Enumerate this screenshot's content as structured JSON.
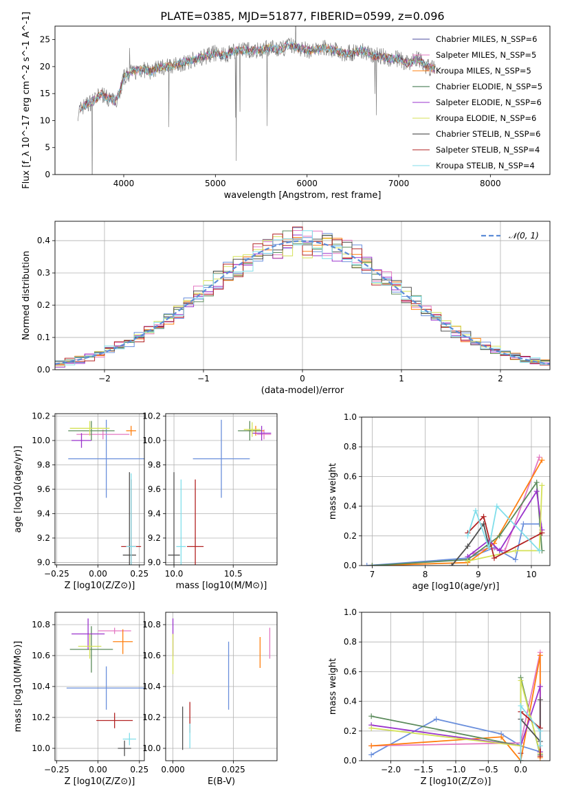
{
  "figure": {
    "title": "PLATE=0385, MJD=51877, FIBERID=0599, z=0.096"
  },
  "chart_data": [
    {
      "id": "spectrum",
      "type": "line",
      "xlabel": "wavelength [Angstrom, rest frame]",
      "ylabel": "Flux [f_λ 10^-17 erg cm^-2 s^-1 A^-1]",
      "xlim": [
        3250,
        8650
      ],
      "ylim": [
        0,
        27.5
      ],
      "xticks": [
        4000,
        5000,
        6000,
        7000,
        8000
      ],
      "yticks": [
        0,
        5,
        10,
        15,
        20,
        25
      ],
      "grid": false,
      "legend_position": "top-right",
      "data_color": "#808080",
      "data_curve": {
        "x": [
          3500,
          3550,
          3600,
          3650,
          3700,
          3750,
          3800,
          3850,
          3900,
          3950,
          4000,
          4100,
          4200,
          4300,
          4400,
          4500,
          4600,
          4700,
          4800,
          4900,
          5000,
          5100,
          5200,
          5300,
          5400,
          5500,
          5600,
          5700,
          5800,
          5900,
          6000,
          6100,
          6200,
          6300,
          6400,
          6500,
          6600,
          6700,
          6800,
          6900,
          7000,
          7100,
          7200,
          7300,
          7400
        ],
        "y": [
          11.5,
          12.5,
          13,
          13.5,
          14,
          15,
          14.5,
          14,
          13.5,
          15,
          18,
          19,
          19.5,
          19,
          20,
          20,
          20.5,
          21,
          21.5,
          22,
          22.5,
          22,
          23,
          23,
          23,
          23,
          23.5,
          23,
          24,
          23.5,
          23,
          23,
          23.5,
          23,
          22.5,
          22.5,
          23,
          22,
          22,
          21.5,
          21.5,
          20.5,
          21.5,
          20,
          19.5
        ]
      },
      "series": [
        {
          "name": "Chabrier MILES, N_SSP=6",
          "color": "#4a4a9c"
        },
        {
          "name": "Salpeter MILES, N_SSP=5",
          "color": "#e377c2"
        },
        {
          "name": "Kroupa MILES, N_SSP=5",
          "color": "#ff7f0e"
        },
        {
          "name": "Chabrier ELODIE, N_SSP=5",
          "color": "#2e6b3c"
        },
        {
          "name": "Salpeter ELODIE, N_SSP=6",
          "color": "#9932cc"
        },
        {
          "name": "Kroupa ELODIE, N_SSP=6",
          "color": "#d4e157"
        },
        {
          "name": "Chabrier STELIB, N_SSP=6",
          "color": "#303030"
        },
        {
          "name": "Salpeter STELIB, N_SSP=4",
          "color": "#b22222"
        },
        {
          "name": "Kroupa STELIB, N_SSP=4",
          "color": "#80deea"
        }
      ]
    },
    {
      "id": "residuals",
      "type": "histogram",
      "xlabel": "(data-model)/error",
      "ylabel": "Normed distribution",
      "xlim": [
        -2.5,
        2.5
      ],
      "ylim": [
        0,
        0.46
      ],
      "xticks": [
        -2,
        -1,
        0,
        1,
        2
      ],
      "yticks": [
        0.0,
        0.1,
        0.2,
        0.3,
        0.4
      ],
      "grid": true,
      "legend": "𝒩(0, 1)",
      "legend_position": "top-right",
      "gaussian_mu": 0,
      "gaussian_sigma": 1,
      "bin_width": 0.1,
      "colors": [
        "#6a8fdc",
        "#e377c2",
        "#ff7f0e",
        "#5a8a5a",
        "#9932cc",
        "#d4e157",
        "#505050",
        "#b22222",
        "#80deea"
      ]
    },
    {
      "id": "age_vs_Z",
      "type": "errorbar",
      "xlabel": "Z [log10(Z/Z⊙)]",
      "ylabel": "age [log10(age/yr)]",
      "xlim": [
        -0.26,
        0.28
      ],
      "ylim": [
        8.98,
        10.22
      ],
      "xticks": [
        -0.25,
        0.0,
        0.25
      ],
      "xtick_labels": [
        "−0.25",
        "0.00",
        "0.25"
      ],
      "yticks": [
        9.0,
        9.2,
        9.4,
        9.6,
        9.8,
        10.0,
        10.2
      ],
      "grid": true,
      "points": [
        {
          "x": 0.05,
          "y": 9.85,
          "xerr": 0.23,
          "yerr": 0.32,
          "color": "#6a8fdc"
        },
        {
          "x": 0.03,
          "y": 10.05,
          "xerr": 0.16,
          "yerr": 0.04,
          "color": "#e377c2"
        },
        {
          "x": 0.2,
          "y": 10.08,
          "xerr": 0.03,
          "yerr": 0.04,
          "color": "#ff7f0e"
        },
        {
          "x": -0.04,
          "y": 10.08,
          "xerr": 0.14,
          "yerr": 0.08,
          "color": "#5a8a5a"
        },
        {
          "x": -0.1,
          "y": 10.0,
          "xerr": 0.06,
          "yerr": 0.06,
          "color": "#9932cc"
        },
        {
          "x": -0.05,
          "y": 10.1,
          "xerr": 0.12,
          "yerr": 0.06,
          "color": "#d4e157"
        },
        {
          "x": 0.19,
          "y": 9.06,
          "xerr": 0.04,
          "yerr": 0.68,
          "color": "#505050"
        },
        {
          "x": 0.2,
          "y": 9.13,
          "xerr": 0.06,
          "yerr": 0.55,
          "color": "#b22222"
        },
        {
          "x": 0.2,
          "y": 9.13,
          "xerr": 0.03,
          "yerr": 0.6,
          "color": "#80deea"
        }
      ]
    },
    {
      "id": "age_vs_mass",
      "type": "errorbar",
      "xlabel": "mass [log10(M/M⊙)]",
      "xlim": [
        9.93,
        10.87
      ],
      "ylim": [
        8.98,
        10.22
      ],
      "xticks": [
        10.0,
        10.5
      ],
      "yticks": [
        9.0,
        9.2,
        9.4,
        9.6,
        9.8,
        10.0,
        10.2
      ],
      "grid": true,
      "points": [
        {
          "x": 10.4,
          "y": 9.85,
          "xerr": 0.24,
          "yerr": 0.32,
          "color": "#6a8fdc"
        },
        {
          "x": 10.76,
          "y": 10.05,
          "xerr": 0.06,
          "yerr": 0.04,
          "color": "#e377c2"
        },
        {
          "x": 10.69,
          "y": 10.08,
          "xerr": 0.07,
          "yerr": 0.04,
          "color": "#ff7f0e"
        },
        {
          "x": 10.64,
          "y": 10.08,
          "xerr": 0.1,
          "yerr": 0.08,
          "color": "#5a8a5a"
        },
        {
          "x": 10.74,
          "y": 10.06,
          "xerr": 0.08,
          "yerr": 0.06,
          "color": "#9932cc"
        },
        {
          "x": 10.66,
          "y": 10.09,
          "xerr": 0.07,
          "yerr": 0.06,
          "color": "#d4e157"
        },
        {
          "x": 10.0,
          "y": 9.06,
          "xerr": 0.05,
          "yerr": 0.68,
          "color": "#505050"
        },
        {
          "x": 10.18,
          "y": 9.13,
          "xerr": 0.07,
          "yerr": 0.55,
          "color": "#b22222"
        },
        {
          "x": 10.06,
          "y": 9.13,
          "xerr": 0.04,
          "yerr": 0.55,
          "color": "#80deea"
        }
      ]
    },
    {
      "id": "weight_vs_age",
      "type": "line",
      "xlabel": "age [log10(age/yr)]",
      "ylabel": "mass weight",
      "xlim": [
        6.8,
        10.35
      ],
      "ylim": [
        0,
        1.0
      ],
      "xticks": [
        7,
        8,
        9,
        10
      ],
      "yticks": [
        0.0,
        0.2,
        0.4,
        0.6,
        0.8,
        1.0
      ],
      "grid": true,
      "series": [
        {
          "color": "#6a8fdc",
          "x": [
            6.9,
            8.8,
            9.3,
            9.7,
            9.85,
            10.15
          ],
          "y": [
            0.0,
            0.05,
            0.12,
            0.04,
            0.28,
            0.28
          ]
        },
        {
          "color": "#e377c2",
          "x": [
            8.9,
            9.2,
            9.5,
            10.15
          ],
          "y": [
            0.08,
            0.12,
            0.1,
            0.73
          ]
        },
        {
          "color": "#ff7f0e",
          "x": [
            7.0,
            8.8,
            9.3,
            10.2
          ],
          "y": [
            0.0,
            0.02,
            0.15,
            0.71
          ]
        },
        {
          "color": "#5a8a5a",
          "x": [
            7.0,
            8.8,
            9.4,
            10.1,
            10.2
          ],
          "y": [
            0.0,
            0.04,
            0.2,
            0.56,
            0.1
          ]
        },
        {
          "color": "#9932cc",
          "x": [
            8.8,
            9.2,
            9.4,
            10.1,
            10.2
          ],
          "y": [
            0.06,
            0.17,
            0.1,
            0.5,
            0.24
          ]
        },
        {
          "color": "#d4e157",
          "x": [
            8.8,
            9.7,
            10.15,
            10.2
          ],
          "y": [
            0.03,
            0.1,
            0.1,
            0.54
          ]
        },
        {
          "color": "#505050",
          "x": [
            8.5,
            8.8,
            9.1,
            9.2
          ],
          "y": [
            0.0,
            0.13,
            0.28,
            0.13
          ]
        },
        {
          "color": "#b22222",
          "x": [
            8.8,
            9.1,
            9.3,
            10.2
          ],
          "y": [
            0.22,
            0.33,
            0.05,
            0.22
          ]
        },
        {
          "color": "#80deea",
          "x": [
            8.8,
            8.95,
            9.2,
            9.35,
            10.15
          ],
          "y": [
            0.2,
            0.37,
            0.12,
            0.4,
            0.1
          ]
        }
      ]
    },
    {
      "id": "mass_vs_Z",
      "type": "errorbar",
      "xlabel": "Z [log10(Z/Z⊙)]",
      "ylabel": "mass [log10(M/M⊙)]",
      "xlim": [
        -0.26,
        0.28
      ],
      "ylim": [
        9.92,
        10.88
      ],
      "xticks": [
        -0.25,
        0.0,
        0.25
      ],
      "xtick_labels": [
        "−0.25",
        "0.00",
        "0.25"
      ],
      "yticks": [
        10.0,
        10.2,
        10.4,
        10.6,
        10.8
      ],
      "grid": true,
      "points": [
        {
          "x": 0.05,
          "y": 10.39,
          "xerr": 0.24,
          "yerr": 0.14,
          "color": "#6a8fdc"
        },
        {
          "x": 0.1,
          "y": 10.76,
          "xerr": 0.1,
          "yerr": 0.02,
          "color": "#e377c2"
        },
        {
          "x": 0.15,
          "y": 10.69,
          "xerr": 0.06,
          "yerr": 0.08,
          "color": "#ff7f0e"
        },
        {
          "x": -0.04,
          "y": 10.64,
          "xerr": 0.13,
          "yerr": 0.15,
          "color": "#5a8a5a"
        },
        {
          "x": -0.06,
          "y": 10.74,
          "xerr": 0.1,
          "yerr": 0.1,
          "color": "#9932cc"
        },
        {
          "x": -0.05,
          "y": 10.66,
          "xerr": 0.07,
          "yerr": 0.08,
          "color": "#d4e157"
        },
        {
          "x": 0.16,
          "y": 10.0,
          "xerr": 0.04,
          "yerr": 0.05,
          "color": "#505050"
        },
        {
          "x": 0.1,
          "y": 10.18,
          "xerr": 0.11,
          "yerr": 0.05,
          "color": "#b22222"
        },
        {
          "x": 0.19,
          "y": 10.06,
          "xerr": 0.04,
          "yerr": 0.04,
          "color": "#80deea"
        }
      ]
    },
    {
      "id": "mass_vs_ebv",
      "type": "errorbar",
      "xlabel": "E(B-V)",
      "xlim": [
        -0.003,
        0.043
      ],
      "ylim": [
        9.92,
        10.88
      ],
      "xticks": [
        0.0,
        0.025
      ],
      "xtick_labels": [
        "0.000",
        "0.025"
      ],
      "yticks": [
        10.0,
        10.2,
        10.4,
        10.6,
        10.8
      ],
      "grid": true,
      "points": [
        {
          "x": 0.023,
          "y": 10.47,
          "yerr": 0.22,
          "color": "#6a8fdc"
        },
        {
          "x": 0.04,
          "y": 10.68,
          "yerr": 0.1,
          "color": "#e377c2"
        },
        {
          "x": 0.036,
          "y": 10.62,
          "yerr": 0.1,
          "color": "#ff7f0e"
        },
        {
          "x": 0.0,
          "y": 10.72,
          "yerr": 0.12,
          "color": "#9932cc"
        },
        {
          "x": 0.0,
          "y": 10.61,
          "yerr": 0.13,
          "color": "#d4e157"
        },
        {
          "x": 0.004,
          "y": 10.13,
          "yerr": 0.14,
          "color": "#505050"
        },
        {
          "x": 0.007,
          "y": 10.2,
          "yerr": 0.1,
          "color": "#b22222"
        },
        {
          "x": 0.007,
          "y": 10.08,
          "yerr": 0.08,
          "color": "#80deea"
        }
      ]
    },
    {
      "id": "weight_vs_Z",
      "type": "line",
      "xlabel": "Z [log10(Z/Z⊙)]",
      "ylabel": "mass weight",
      "xlim": [
        -2.45,
        0.45
      ],
      "ylim": [
        0,
        1.0
      ],
      "xticks": [
        -2.0,
        -1.5,
        -1.0,
        -0.5,
        0.0
      ],
      "xtick_labels": [
        "−2.0",
        "−1.5",
        "−1.0",
        "−0.5",
        "0.0"
      ],
      "yticks": [
        0.0,
        0.2,
        0.4,
        0.6,
        0.8,
        1.0
      ],
      "grid": true,
      "series": [
        {
          "color": "#6a8fdc",
          "x": [
            -2.3,
            -1.3,
            -0.3,
            0.0,
            0.3
          ],
          "y": [
            0.04,
            0.28,
            0.18,
            0.1,
            0.06
          ]
        },
        {
          "color": "#e377c2",
          "x": [
            -2.3,
            0.0,
            0.3,
            0.3
          ],
          "y": [
            0.1,
            0.12,
            0.73,
            0.05
          ]
        },
        {
          "color": "#ff7f0e",
          "x": [
            -2.3,
            -0.3,
            0.0,
            0.3,
            0.3
          ],
          "y": [
            0.1,
            0.16,
            0.0,
            0.71,
            0.02
          ]
        },
        {
          "color": "#5a8a5a",
          "x": [
            -2.3,
            0.0,
            0.0,
            0.3
          ],
          "y": [
            0.3,
            0.1,
            0.56,
            0.04
          ]
        },
        {
          "color": "#9932cc",
          "x": [
            -2.3,
            0.0,
            0.3,
            0.3
          ],
          "y": [
            0.24,
            0.1,
            0.5,
            0.06
          ]
        },
        {
          "color": "#d4e157",
          "x": [
            -2.3,
            0.0,
            0.0,
            0.3
          ],
          "y": [
            0.22,
            0.1,
            0.54,
            0.05
          ]
        },
        {
          "color": "#505050",
          "x": [
            0.0,
            0.0,
            0.3,
            0.3
          ],
          "y": [
            0.0,
            0.28,
            0.13,
            0.41
          ]
        },
        {
          "color": "#b22222",
          "x": [
            0.0,
            0.0,
            0.3,
            0.3
          ],
          "y": [
            0.05,
            0.33,
            0.22,
            0.03
          ]
        },
        {
          "color": "#80deea",
          "x": [
            0.0,
            0.0,
            0.3,
            0.3
          ],
          "y": [
            0.0,
            0.37,
            0.2,
            0.1
          ]
        }
      ]
    }
  ]
}
